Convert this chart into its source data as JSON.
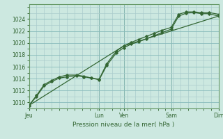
{
  "title": "",
  "xlabel": "Pression niveau de la mer( hPa )",
  "bg_color": "#cce8e0",
  "grid_color": "#aacccc",
  "grid_color_major": "#88bbbb",
  "line_color": "#336633",
  "text_color": "#336633",
  "ylim": [
    1009.0,
    1026.5
  ],
  "yticks": [
    1010,
    1012,
    1014,
    1016,
    1018,
    1020,
    1022,
    1024
  ],
  "xlim": [
    0,
    100
  ],
  "xtick_labels": [
    "Jeu",
    "Lun",
    "Ven",
    "Sam",
    "Dim"
  ],
  "xtick_positions": [
    0,
    37,
    50,
    75,
    100
  ],
  "vline_positions": [
    0,
    37,
    50,
    75,
    100
  ],
  "line1_x": [
    0,
    4,
    8,
    12,
    16,
    20,
    25,
    29,
    33,
    37,
    41,
    46,
    50,
    54,
    58,
    62,
    66,
    70,
    75,
    79,
    83,
    87,
    91,
    95,
    100
  ],
  "line1_y": [
    1009.5,
    1011.0,
    1012.8,
    1013.5,
    1014.1,
    1014.3,
    1014.5,
    1014.3,
    1014.1,
    1013.8,
    1016.2,
    1018.3,
    1019.2,
    1019.8,
    1020.2,
    1020.7,
    1021.2,
    1021.7,
    1022.3,
    1024.5,
    1025.0,
    1025.1,
    1024.9,
    1024.9,
    1024.5
  ],
  "line2_x": [
    0,
    4,
    8,
    12,
    16,
    20,
    25,
    29,
    33,
    37,
    41,
    46,
    50,
    54,
    58,
    62,
    66,
    70,
    75,
    79,
    83,
    87,
    91,
    95,
    100
  ],
  "line2_y": [
    1009.5,
    1011.2,
    1013.0,
    1013.7,
    1014.3,
    1014.6,
    1014.6,
    1014.4,
    1014.1,
    1013.9,
    1016.5,
    1018.6,
    1019.5,
    1020.1,
    1020.6,
    1021.1,
    1021.6,
    1022.1,
    1022.6,
    1024.8,
    1025.2,
    1025.2,
    1025.1,
    1025.1,
    1024.8
  ],
  "line3_x": [
    0,
    50,
    100
  ],
  "line3_y": [
    1009.5,
    1019.5,
    1024.5
  ]
}
